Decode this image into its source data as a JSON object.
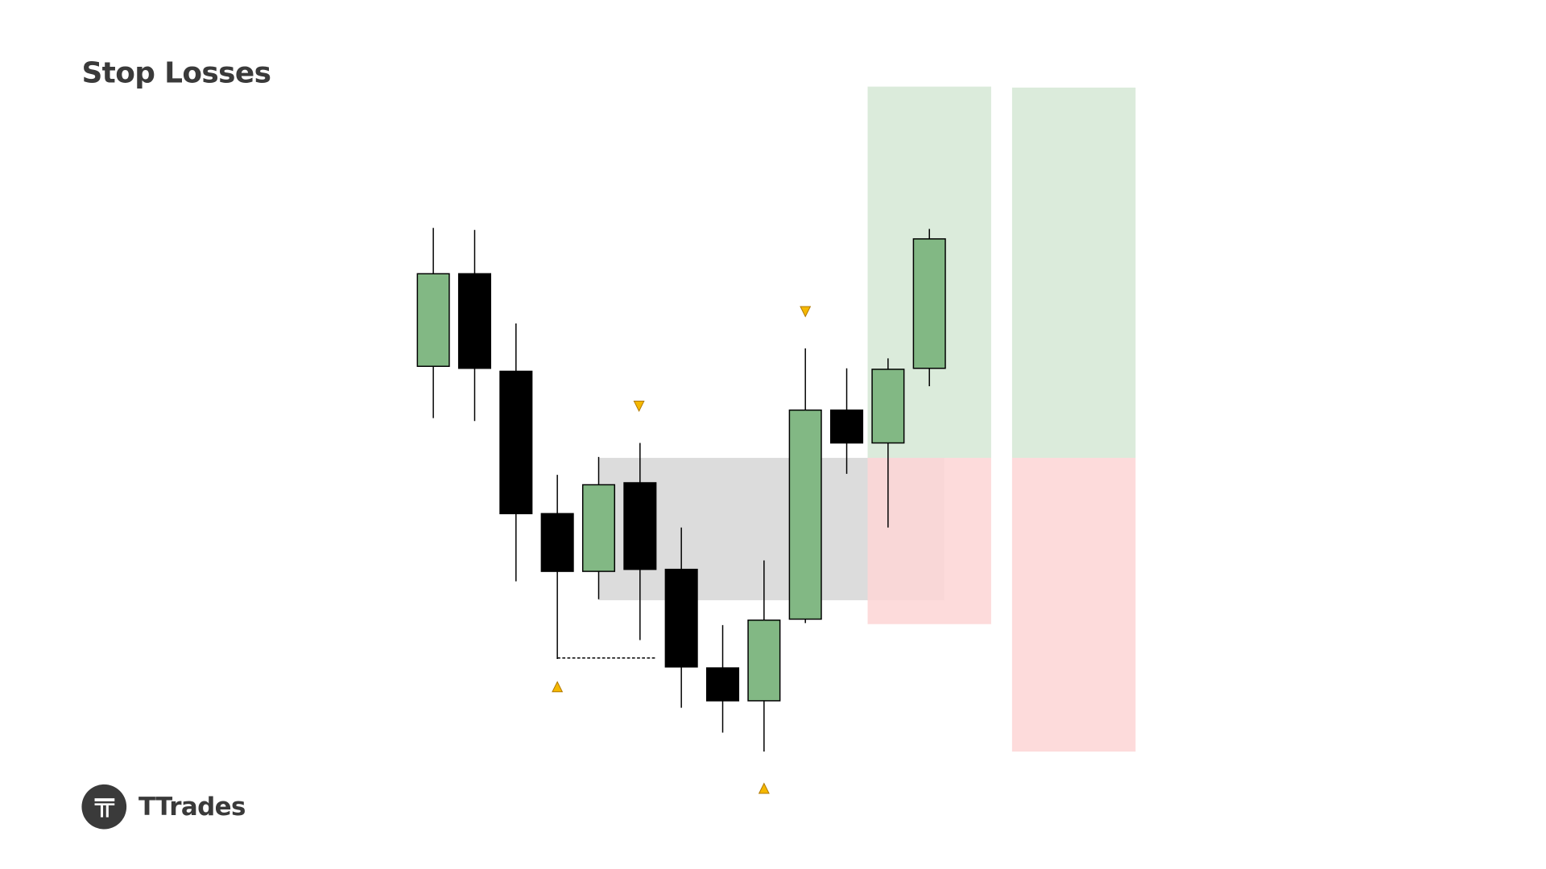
{
  "title": "Stop Losses",
  "brand": {
    "name": "TTrades",
    "logo_icon": "t-logo-icon"
  },
  "colors": {
    "bull": "#82b884",
    "bear": "#000000",
    "profit_zone": "#d9ead9",
    "loss_zone": "#fdd7d7",
    "gap_zone": "#d6d6d6",
    "marker": "#f5b800"
  },
  "chart_data": {
    "type": "candlestick",
    "title": "",
    "xlabel": "",
    "ylabel": "",
    "axes_visible": false,
    "grid": false,
    "candles": [
      {
        "o": 43.2,
        "h": 57.1,
        "l": 38.0,
        "c": 52.5
      },
      {
        "o": 52.5,
        "h": 56.9,
        "l": 37.7,
        "c": 43.0
      },
      {
        "o": 42.7,
        "h": 47.5,
        "l": 21.6,
        "c": 28.4
      },
      {
        "o": 28.4,
        "h": 32.3,
        "l": 13.8,
        "c": 22.6
      },
      {
        "o": 22.6,
        "h": 34.1,
        "l": 19.8,
        "c": 31.3
      },
      {
        "o": 31.5,
        "h": 35.5,
        "l": 15.7,
        "c": 22.8
      },
      {
        "o": 22.8,
        "h": 27.0,
        "l": 8.9,
        "c": 13.0
      },
      {
        "o": 12.9,
        "h": 17.2,
        "l": 6.4,
        "c": 9.6
      },
      {
        "o": 9.6,
        "h": 23.7,
        "l": 4.5,
        "c": 17.7
      },
      {
        "o": 17.8,
        "h": 45.0,
        "l": 17.4,
        "c": 38.8
      },
      {
        "o": 38.8,
        "h": 43.0,
        "l": 32.4,
        "c": 35.5
      },
      {
        "o": 35.5,
        "h": 44.0,
        "l": 27.0,
        "c": 42.9
      },
      {
        "o": 43.0,
        "h": 57.0,
        "l": 41.2,
        "c": 56.0
      }
    ],
    "gap_zone": {
      "from_candle": 4,
      "to_candle": 12,
      "top": 34.0,
      "bottom": 19.7
    },
    "trades": [
      {
        "entry": 34.0,
        "take_profit": 71.3,
        "stop_loss": 17.3
      },
      {
        "entry": 34.0,
        "take_profit": 71.2,
        "stop_loss": 4.5
      }
    ],
    "swing_markers": [
      {
        "candle": 5,
        "type": "high",
        "price": 39.2
      },
      {
        "candle": 9,
        "type": "high",
        "price": 48.7
      },
      {
        "candle": 3,
        "type": "low",
        "price": 11.0
      },
      {
        "candle": 8,
        "type": "low",
        "price": 0.8
      }
    ],
    "dashed_level": {
      "price": 13.9,
      "from_candle": 3,
      "to_candle": 6
    }
  }
}
